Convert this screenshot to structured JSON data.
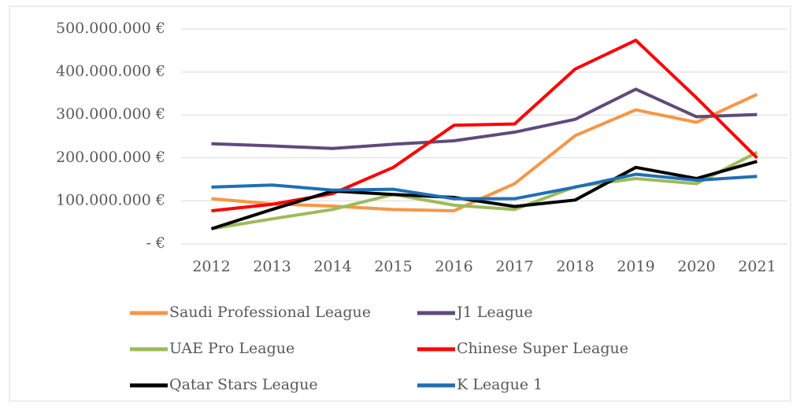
{
  "chart_data": {
    "type": "line",
    "categories": [
      "2012",
      "2013",
      "2014",
      "2015",
      "2016",
      "2017",
      "2018",
      "2019",
      "2020",
      "2021"
    ],
    "series": [
      {
        "name": "Saudi Professional League",
        "color": "#f79646",
        "values": [
          105000000,
          93000000,
          88000000,
          80000000,
          77000000,
          140000000,
          252000000,
          312000000,
          283000000,
          348000000
        ]
      },
      {
        "name": "J1 League",
        "color": "#604a7b",
        "values": [
          233000000,
          228000000,
          222000000,
          232000000,
          240000000,
          260000000,
          290000000,
          360000000,
          296000000,
          301000000
        ]
      },
      {
        "name": "UAE Pro League",
        "color": "#9bbb59",
        "values": [
          35000000,
          58000000,
          80000000,
          115000000,
          90000000,
          80000000,
          133000000,
          152000000,
          140000000,
          213000000
        ]
      },
      {
        "name": "Chinese Super League",
        "color": "#ff0000",
        "values": [
          77000000,
          92000000,
          117000000,
          178000000,
          276000000,
          279000000,
          407000000,
          474000000,
          340000000,
          200000000
        ]
      },
      {
        "name": "Qatar Stars League",
        "color": "#000000",
        "values": [
          35000000,
          80000000,
          123000000,
          115000000,
          108000000,
          87000000,
          102000000,
          178000000,
          152000000,
          192000000
        ]
      },
      {
        "name": "K League 1",
        "color": "#1f6fb4",
        "values": [
          132000000,
          137000000,
          125000000,
          127000000,
          105000000,
          105000000,
          132000000,
          162000000,
          148000000,
          157000000
        ]
      }
    ],
    "ylim": [
      0,
      500000000
    ],
    "yticks": [
      {
        "value": 0,
        "label": "-   €"
      },
      {
        "value": 100000000,
        "label": "100.000.000 €"
      },
      {
        "value": 200000000,
        "label": "200.000.000 €"
      },
      {
        "value": 300000000,
        "label": "300.000.000 €"
      },
      {
        "value": 400000000,
        "label": "400.000.000 €"
      },
      {
        "value": 500000000,
        "label": "500.000.000 €"
      }
    ],
    "grid": true
  }
}
